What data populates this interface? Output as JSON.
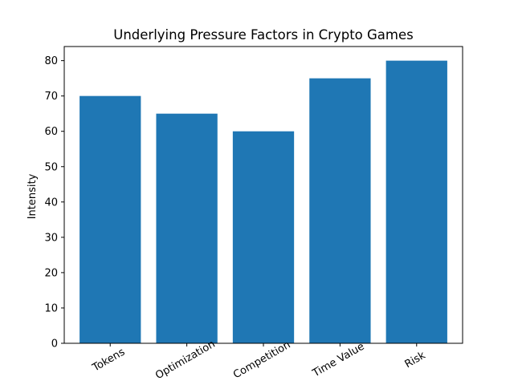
{
  "chart_data": {
    "type": "bar",
    "title": "Underlying Pressure Factors in Crypto Games",
    "xlabel": "",
    "ylabel": "Intensity",
    "categories": [
      "Tokens",
      "Optimization",
      "Competition",
      "Time Value",
      "Risk"
    ],
    "values": [
      70,
      65,
      60,
      75,
      80
    ],
    "ylim": [
      0,
      84
    ],
    "yticks": [
      0,
      10,
      20,
      30,
      40,
      50,
      60,
      70,
      80
    ],
    "grid": false,
    "legend": "none",
    "bar_color": "#1f77b4",
    "x_tick_rotation_deg": 30
  }
}
